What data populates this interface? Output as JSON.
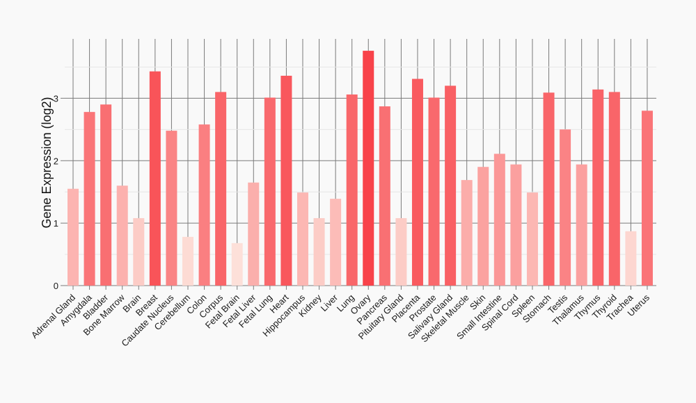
{
  "chart_data": {
    "type": "bar",
    "title": "",
    "xlabel": "",
    "ylabel": "Gene Expression (log2)",
    "ylim": [
      0,
      3.95
    ],
    "yticks": [
      0,
      1,
      2,
      3
    ],
    "grid": "on",
    "colors": {
      "low": "#fde0d9",
      "high": "#f8434a",
      "grid": "#7a7a7a",
      "minor_grid": "#e6e6e6"
    },
    "categories": [
      "Adrenal Gland",
      "Amygdala",
      "Bladder",
      "Bone Marrow",
      "Brain",
      "Breast",
      "Caudate Nucleus",
      "Cerebellum",
      "Colon",
      "Corpus",
      "Fetal Brain",
      "Fetal Liver",
      "Fetal Lung",
      "Heart",
      "Hippocampus",
      "Kidney",
      "Liver",
      "Lung",
      "Ovary",
      "Pancreas",
      "Pituitary Gland",
      "Placenta",
      "Prostate",
      "Salivary Gland",
      "Skeletal Muscle",
      "Skin",
      "Small Intestine",
      "Spinal Cord",
      "Spleen",
      "Stomach",
      "Testis",
      "Thalamus",
      "Thymus",
      "Thyroid",
      "Trachea",
      "Uterus"
    ],
    "values": [
      1.55,
      2.78,
      2.9,
      1.6,
      1.08,
      3.43,
      2.48,
      0.78,
      2.58,
      3.1,
      0.68,
      1.65,
      3.01,
      3.36,
      1.49,
      1.08,
      1.39,
      3.06,
      3.76,
      2.87,
      1.08,
      3.31,
      3.01,
      3.2,
      1.69,
      1.9,
      2.11,
      1.94,
      1.49,
      3.09,
      2.5,
      1.94,
      3.14,
      3.1,
      0.87,
      2.8
    ]
  }
}
